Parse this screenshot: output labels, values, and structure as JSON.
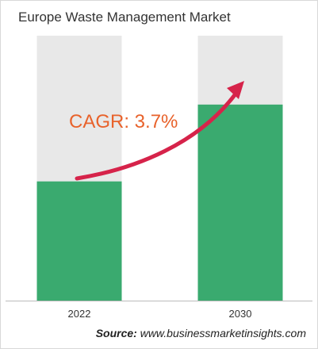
{
  "title": "Europe Waste Management Market",
  "source": {
    "label": "Source:",
    "text": "www.businessmarketinsights.com"
  },
  "annotation": "CAGR: 3.7%",
  "colors": {
    "bar": "#3aaa6f",
    "bar_background": "#e8e8e8",
    "annotation_text": "#e8622b",
    "arrow": "#d6234a",
    "axis": "#bbbbbb"
  },
  "chart_data": {
    "type": "bar",
    "categories": [
      "2022",
      "2030"
    ],
    "values": [
      45,
      74
    ],
    "ylim": [
      0,
      100
    ],
    "xlabel": "",
    "ylabel": "",
    "grid": false,
    "annotations": [
      "CAGR: 3.7%"
    ]
  }
}
